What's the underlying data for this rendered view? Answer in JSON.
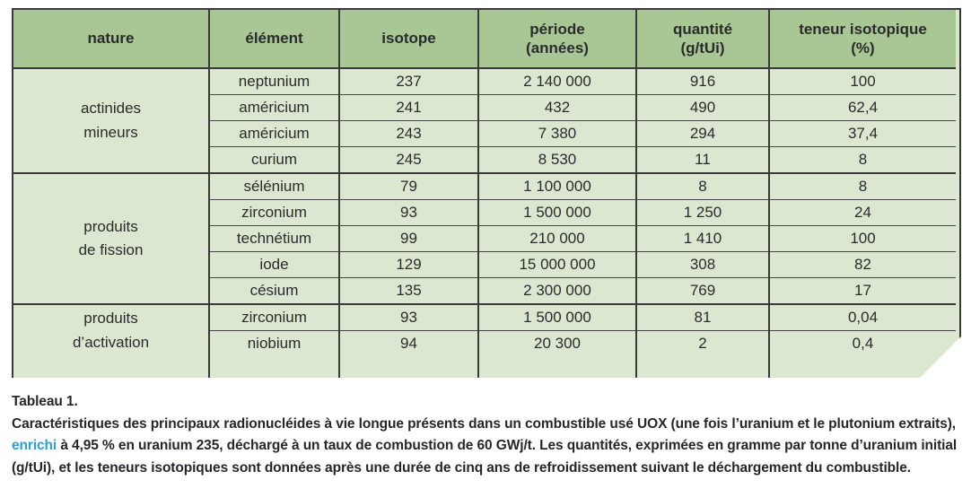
{
  "table": {
    "columns": [
      {
        "label": "nature",
        "sub": ""
      },
      {
        "label": "élément",
        "sub": ""
      },
      {
        "label": "isotope",
        "sub": ""
      },
      {
        "label": "période",
        "sub": "(années)"
      },
      {
        "label": "quantité",
        "sub": "(g/tUi)"
      },
      {
        "label": "teneur isotopique",
        "sub": "(%)"
      }
    ],
    "groups": [
      {
        "nature_line1": "actinides",
        "nature_line2": "mineurs",
        "rows": [
          {
            "element": "neptunium",
            "isotope": "237",
            "period": "2 140 000",
            "quantity": "916",
            "content": "100"
          },
          {
            "element": "américium",
            "isotope": "241",
            "period": "432",
            "quantity": "490",
            "content": "62,4"
          },
          {
            "element": "américium",
            "isotope": "243",
            "period": "7 380",
            "quantity": "294",
            "content": "37,4"
          },
          {
            "element": "curium",
            "isotope": "245",
            "period": "8 530",
            "quantity": "11",
            "content": "8"
          }
        ]
      },
      {
        "nature_line1": "produits",
        "nature_line2": "de fission",
        "rows": [
          {
            "element": "sélénium",
            "isotope": "79",
            "period": "1 100 000",
            "quantity": "8",
            "content": "8"
          },
          {
            "element": "zirconium",
            "isotope": "93",
            "period": "1 500 000",
            "quantity": "1 250",
            "content": "24"
          },
          {
            "element": "technétium",
            "isotope": "99",
            "period": "210 000",
            "quantity": "1 410",
            "content": "100"
          },
          {
            "element": "iode",
            "isotope": "129",
            "period": "15 000 000",
            "quantity": "308",
            "content": "82"
          },
          {
            "element": "césium",
            "isotope": "135",
            "period": "2 300 000",
            "quantity": "769",
            "content": "17"
          }
        ]
      },
      {
        "nature_line1": "produits",
        "nature_line2": "d’activation",
        "rows": [
          {
            "element": "zirconium",
            "isotope": "93",
            "period": "1 500 000",
            "quantity": "81",
            "content": "0,04"
          },
          {
            "element": "niobium",
            "isotope": "94",
            "period": "20 300",
            "quantity": "2",
            "content": "0,4"
          }
        ]
      }
    ]
  },
  "caption": {
    "title": "Tableau 1.",
    "text_before": "Caractéristiques des principaux radionucléides à vie longue présents dans un combustible usé UOX (une fois l’uranium et le plutonium extraits), ",
    "highlight": "enrichi",
    "text_after": " à 4,95 % en uranium 235, déchargé à un taux de combustion de 60 GWj/t. Les quantités, exprimées en gramme par tonne d’uranium initial (g/tUi), et les teneurs isotopiques sont données après une durée de cinq ans de refroidissement suivant le déchargement du combustible."
  },
  "colors": {
    "header_green": "#a8c795",
    "body_green": "#dce7d2",
    "border_dark": "#3a3a3a",
    "caption_text": "#26262c",
    "highlight_blue": "#2e9fd6"
  }
}
